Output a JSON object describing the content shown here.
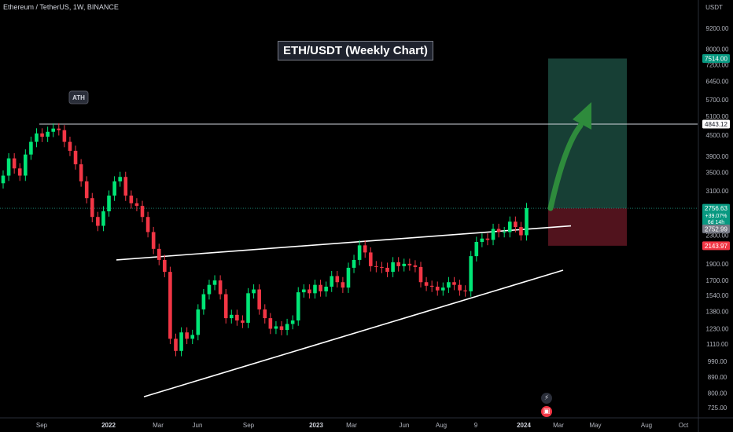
{
  "header": {
    "symbol_line": "Ethereum / TetherUS, 1W, BINANCE"
  },
  "chart_title": "ETH/USDT (Weekly Chart)",
  "annotation": {
    "ath_label": "ATH"
  },
  "colors": {
    "up": "#22ab94",
    "up_bright": "#00e676",
    "down": "#f23645",
    "background": "#000000",
    "profit_zone": "#1b4a3e",
    "loss_zone": "#5a1520",
    "arrow": "#2e8b3c"
  },
  "icons": [
    "bolt-icon",
    "event-icon"
  ],
  "chart_data": {
    "type": "candlestick",
    "title": "ETH/USDT (Weekly Chart)",
    "price_axis": {
      "currency": "USDT",
      "scale": "log",
      "range": [
        700,
        11000
      ],
      "ticks": [
        "9200.00",
        "8000.00",
        "7200.00",
        "6450.00",
        "5700.00",
        "5100.00",
        "4500.00",
        "3900.00",
        "3500.00",
        "3100.00",
        "2700.00",
        "2300.00",
        "1900.00",
        "1700.00",
        "1540.00",
        "1380.00",
        "1230.00",
        "1110.00",
        "990.00",
        "890.00",
        "800.00",
        "725.00"
      ],
      "tick_values": [
        9200,
        8000,
        7200,
        6450,
        5700,
        5100,
        4500,
        3900,
        3500,
        3100,
        2700,
        2300,
        1900,
        1700,
        1540,
        1380,
        1230,
        1110,
        990,
        890,
        800,
        725
      ]
    },
    "time_axis": {
      "labels": [
        "Sep",
        "2022",
        "Mar",
        "Jun",
        "Sep",
        "2023",
        "Mar",
        "Jun",
        "Aug",
        "9",
        "2024",
        "Mar",
        "May",
        "Aug",
        "Oct"
      ],
      "bold": [
        "2022",
        "2023",
        "2024"
      ]
    },
    "price_labels": [
      {
        "text": "7514.00",
        "value": 7514,
        "style": "target"
      },
      {
        "text": "4843.12",
        "value": 4843.12,
        "style": "level"
      },
      {
        "text": "2756.63",
        "value": 2756.63,
        "style": "current",
        "sub1": "+39.07%",
        "sub2": "6d 14h"
      },
      {
        "text": "2752.99",
        "value": 2752.99,
        "style": "grey",
        "y_offset": 26
      },
      {
        "text": "2143.97",
        "value": 2143.97,
        "style": "stop"
      }
    ],
    "horizontal_level": 4843.12,
    "closes": [
      3430,
      3850,
      3600,
      3430,
      3950,
      4300,
      4550,
      4450,
      4600,
      4700,
      4650,
      4300,
      4050,
      3700,
      3300,
      2950,
      2600,
      2450,
      2700,
      3000,
      3300,
      3400,
      3000,
      2850,
      2800,
      2600,
      2350,
      2100,
      1950,
      1800,
      1150,
      1060,
      1200,
      1150,
      1180,
      1400,
      1550,
      1650,
      1700,
      1550,
      1320,
      1350,
      1300,
      1280,
      1560,
      1600,
      1400,
      1320,
      1230,
      1250,
      1220,
      1270,
      1300,
      1570,
      1600,
      1560,
      1650,
      1580,
      1630,
      1750,
      1680,
      1620,
      1850,
      1950,
      2150,
      2050,
      1870,
      1860,
      1850,
      1800,
      1920,
      1870,
      1900,
      1880,
      1860,
      1680,
      1640,
      1630,
      1590,
      1620,
      1680,
      1650,
      1590,
      1580,
      2000,
      2200,
      2250,
      2230,
      2400,
      2350,
      2350,
      2520,
      2430,
      2300,
      2760
    ],
    "wedge": {
      "upper_line": {
        "from": [
          "2022 Jan",
          1950
        ],
        "to": [
          "2024 Feb",
          2450
        ]
      },
      "lower_line": {
        "from": [
          "2022 Mar",
          780
        ],
        "to": [
          "2024 Feb",
          1820
        ]
      }
    },
    "trade_box": {
      "entry": 2756.63,
      "target": 7514.0,
      "stop": 2143.97,
      "direction": "long"
    }
  }
}
